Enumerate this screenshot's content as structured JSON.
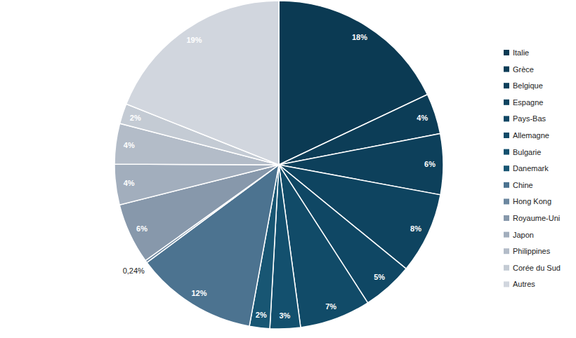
{
  "chart_data": {
    "type": "pie",
    "categories": [
      "Italie",
      "Grèce",
      "Belgique",
      "Espagne",
      "Pays-Bas",
      "Allemagne",
      "Bulgarie",
      "Danemark",
      "Chine",
      "Hong Kong",
      "Royaume-Uni",
      "Japon",
      "Philippines",
      "Corée du Sud",
      "Autres"
    ],
    "values": [
      18,
      4,
      6,
      8,
      5,
      7,
      3,
      2,
      12,
      0.24,
      6,
      4,
      4,
      2,
      19
    ],
    "value_labels": [
      "18%",
      "4%",
      "6%",
      "8%",
      "5%",
      "7%",
      "3%",
      "2%",
      "12%",
      "0,24%",
      "6%",
      "4%",
      "4%",
      "2%",
      "19%"
    ],
    "colors": [
      "#0b3a53",
      "#0c3d57",
      "#0d405b",
      "#0e4460",
      "#0f4764",
      "#114b68",
      "#13506e",
      "#185673",
      "#4c7390",
      "#6c879f",
      "#8798ab",
      "#a2aebd",
      "#b3bcc8",
      "#c4cbd4",
      "#d1d6de"
    ],
    "data_labels": true,
    "legend": "right"
  }
}
